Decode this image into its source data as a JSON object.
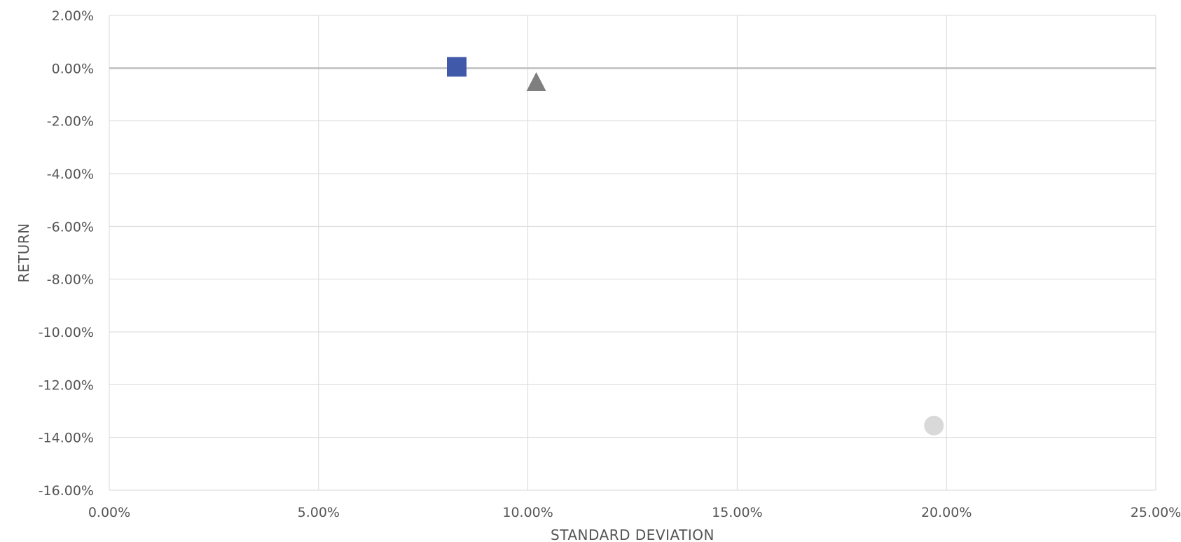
{
  "chart_data": {
    "type": "scatter",
    "xlabel": "STANDARD DEVIATION",
    "ylabel": "RETURN",
    "xlim": [
      0,
      25
    ],
    "ylim": [
      -16,
      2
    ],
    "grid": true,
    "x_ticks": [
      "0.00%",
      "5.00%",
      "10.00%",
      "15.00%",
      "20.00%",
      "25.00%"
    ],
    "y_ticks": [
      "2.00%",
      "0.00%",
      "-2.00%",
      "-4.00%",
      "-6.00%",
      "-8.00%",
      "-10.00%",
      "-12.00%",
      "-14.00%",
      "-16.00%"
    ],
    "x_tick_values": [
      0,
      5,
      10,
      15,
      20,
      25
    ],
    "y_tick_values": [
      2,
      0,
      -2,
      -4,
      -6,
      -8,
      -10,
      -12,
      -14,
      -16
    ],
    "series": [
      {
        "marker": "square",
        "color": "#4059a8",
        "points": [
          {
            "x": 8.3,
            "y": 0.05
          }
        ]
      },
      {
        "marker": "triangle",
        "color": "#7f7f7f",
        "points": [
          {
            "x": 10.2,
            "y": -0.55
          }
        ]
      },
      {
        "marker": "circle",
        "color": "#d9d9d9",
        "points": [
          {
            "x": 19.7,
            "y": -13.55
          }
        ]
      }
    ]
  }
}
